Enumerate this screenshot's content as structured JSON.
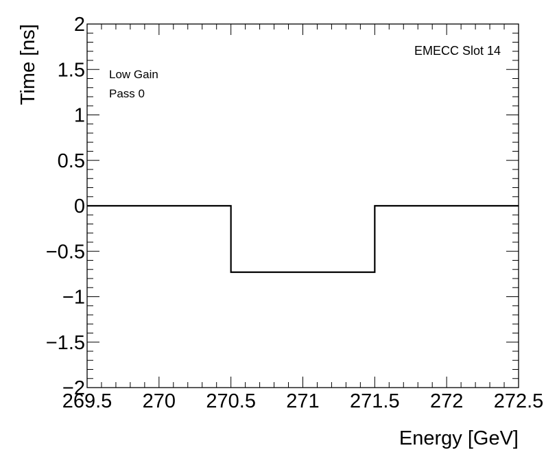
{
  "chart_data": {
    "type": "line",
    "title": "",
    "xlabel": "Energy [GeV]",
    "ylabel": "Time [ns]",
    "xlim": [
      269.5,
      272.5
    ],
    "ylim": [
      -2,
      2
    ],
    "x_ticks": [
      "269.5",
      "270",
      "270.5",
      "271",
      "271.5",
      "272",
      "272.5"
    ],
    "x_tick_values": [
      269.5,
      270,
      270.5,
      271,
      271.5,
      272,
      272.5
    ],
    "y_ticks": [
      "2",
      "1.5",
      "1",
      "0.5",
      "0",
      "−0.5",
      "−1",
      "−1.5",
      "−2"
    ],
    "y_tick_values": [
      2,
      1.5,
      1,
      0.5,
      0,
      -0.5,
      -1,
      -1.5,
      -2
    ],
    "annotations": {
      "top_right": "EMECC Slot 14",
      "line1": "Low Gain",
      "line2": "Pass 0"
    },
    "series": [
      {
        "style": "histogram-step",
        "bins": [
          {
            "x_low": 269.5,
            "x_high": 270.5,
            "y": 0
          },
          {
            "x_low": 270.5,
            "x_high": 271.5,
            "y": -0.73
          },
          {
            "x_low": 271.5,
            "x_high": 272.5,
            "y": 0
          }
        ]
      }
    ],
    "grid": false,
    "line_color": "#000000"
  }
}
